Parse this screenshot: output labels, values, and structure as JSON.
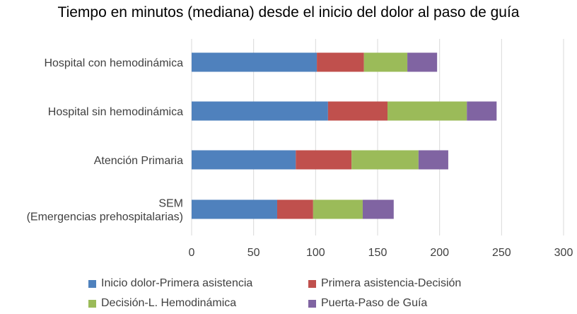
{
  "chart_data": {
    "type": "bar",
    "orientation": "horizontal",
    "stacked": true,
    "title": "Tiempo en minutos (mediana) desde el inicio del dolor al paso de guía",
    "categories": [
      "Hospital con hemodinámica",
      "Hospital sin hemodinámica",
      "Atención Primaria",
      "SEM\n(Emergencias prehospitalarias)"
    ],
    "series": [
      {
        "name": "Inicio dolor-Primera asistencia",
        "color": "#4F81BD",
        "values": [
          101,
          110,
          84,
          69
        ]
      },
      {
        "name": "Primera asistencia-Decisión",
        "color": "#C0504D",
        "values": [
          38,
          48,
          45,
          29
        ]
      },
      {
        "name": "Decisión-L. Hemodinámica",
        "color": "#9BBB59",
        "values": [
          35,
          64,
          54,
          40
        ]
      },
      {
        "name": "Puerta-Paso de Guía",
        "color": "#8064A2",
        "values": [
          24,
          24,
          24,
          25
        ]
      }
    ],
    "xlim": [
      0,
      300
    ],
    "xticks": [
      "0",
      "50",
      "100",
      "150",
      "200",
      "250",
      "300"
    ],
    "grid": "vertical",
    "legend_position": "bottom"
  }
}
